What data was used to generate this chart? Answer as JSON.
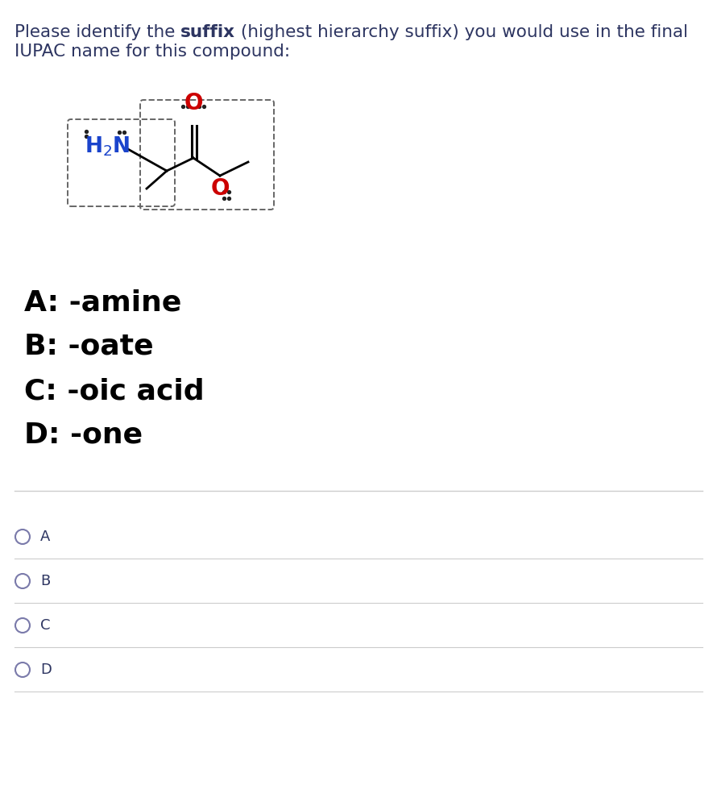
{
  "bg_color": "#ffffff",
  "title_color": "#2d3561",
  "choice_color": "#000000",
  "radio_color": "#2d3561",
  "h2n_color": "#1a44cc",
  "oxygen_color": "#cc0000",
  "line_color": "#000000",
  "separator_color": "#cccccc",
  "choices": [
    "A: -amine",
    "B: -oate",
    "C: -oic acid",
    "D: -one"
  ],
  "radio_labels": [
    "A",
    "B",
    "C",
    "D"
  ],
  "title_fontsize": 15.5,
  "choice_fontsize": 26,
  "radio_fontsize": 13
}
